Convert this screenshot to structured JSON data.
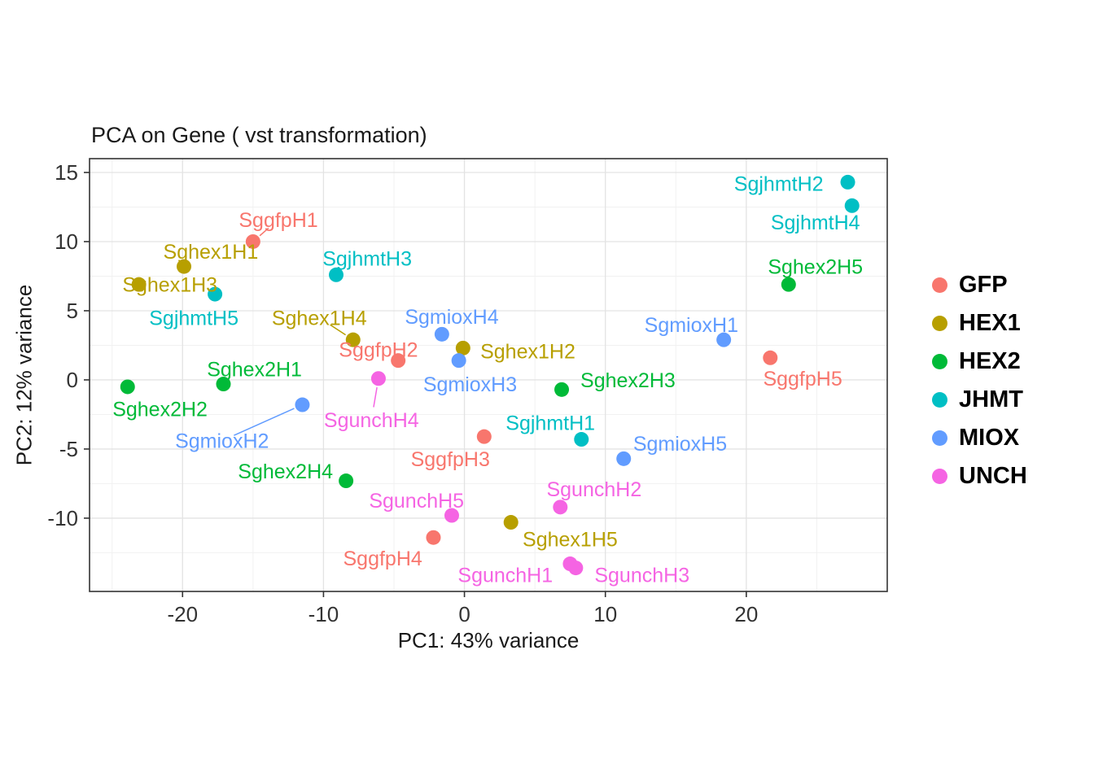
{
  "chart_data": {
    "type": "scatter",
    "title": "PCA on Gene ( vst transformation)",
    "xlabel": "PC1: 43% variance",
    "ylabel": "PC2: 12% variance",
    "xlim": [
      -26.6,
      30
    ],
    "ylim": [
      -15.3,
      16
    ],
    "x_ticks": [
      -20,
      -10,
      0,
      10,
      20
    ],
    "y_ticks": [
      -10,
      -5,
      0,
      5,
      10,
      15
    ],
    "x_minor_ticks": [
      -25,
      -15,
      -5,
      5,
      15,
      25
    ],
    "y_minor_ticks": [
      -12.5,
      -7.5,
      -2.5,
      2.5,
      7.5,
      12.5
    ],
    "grid": true,
    "legend_position": "right",
    "panel_background": "#ffffff",
    "gridline_color": "#e3e3e3",
    "groups": [
      {
        "name": "GFP",
        "color": "#F8766D"
      },
      {
        "name": "HEX1",
        "color": "#B79F00"
      },
      {
        "name": "HEX2",
        "color": "#00BA38"
      },
      {
        "name": "JHMT",
        "color": "#00BFC4"
      },
      {
        "name": "MIOX",
        "color": "#619CFF"
      },
      {
        "name": "UNCH",
        "color": "#F564E3"
      }
    ],
    "points": [
      {
        "label": "SggfpH1",
        "group": "GFP",
        "x": -15.0,
        "y": 10.0,
        "lx": -13.2,
        "ly": 11.6,
        "seg": true
      },
      {
        "label": "SggfpH2",
        "group": "GFP",
        "x": -4.7,
        "y": 1.4,
        "lx": -6.1,
        "ly": 2.2
      },
      {
        "label": "SggfpH3",
        "group": "GFP",
        "x": 1.4,
        "y": -4.1,
        "lx": -1.0,
        "ly": -5.7
      },
      {
        "label": "SggfpH4",
        "group": "GFP",
        "x": -2.2,
        "y": -11.4,
        "lx": -5.8,
        "ly": -12.9
      },
      {
        "label": "SggfpH5",
        "group": "GFP",
        "x": 21.7,
        "y": 1.6,
        "lx": 24.0,
        "ly": 0.1
      },
      {
        "label": "Sghex1H1",
        "group": "HEX1",
        "x": -19.9,
        "y": 8.2,
        "lx": -18.0,
        "ly": 9.3
      },
      {
        "label": "Sghex1H2",
        "group": "HEX1",
        "x": -0.1,
        "y": 2.3,
        "lx": 4.5,
        "ly": 2.1
      },
      {
        "label": "Sghex1H3",
        "group": "HEX1",
        "x": -23.1,
        "y": 6.9,
        "lx": -20.9,
        "ly": 6.9
      },
      {
        "label": "Sghex1H4",
        "group": "HEX1",
        "x": -7.9,
        "y": 2.9,
        "lx": -10.3,
        "ly": 4.5,
        "seg": true
      },
      {
        "label": "Sghex1H5",
        "group": "HEX1",
        "x": 3.3,
        "y": -10.3,
        "lx": 7.5,
        "ly": -11.5
      },
      {
        "label": "Sghex2H1",
        "group": "HEX2",
        "x": -17.1,
        "y": -0.3,
        "lx": -14.9,
        "ly": 0.8
      },
      {
        "label": "Sghex2H2",
        "group": "HEX2",
        "x": -23.9,
        "y": -0.5,
        "lx": -21.6,
        "ly": -2.1
      },
      {
        "label": "Sghex2H3",
        "group": "HEX2",
        "x": 6.9,
        "y": -0.7,
        "lx": 11.6,
        "ly": 0.0
      },
      {
        "label": "Sghex2H4",
        "group": "HEX2",
        "x": -8.4,
        "y": -7.3,
        "lx": -12.7,
        "ly": -6.6
      },
      {
        "label": "Sghex2H5",
        "group": "HEX2",
        "x": 23.0,
        "y": 6.9,
        "lx": 24.9,
        "ly": 8.2
      },
      {
        "label": "SgjhmtH1",
        "group": "JHMT",
        "x": 8.3,
        "y": -4.3,
        "lx": 6.1,
        "ly": -3.1
      },
      {
        "label": "SgjhmtH2",
        "group": "JHMT",
        "x": 27.2,
        "y": 14.3,
        "lx": 22.3,
        "ly": 14.2
      },
      {
        "label": "SgjhmtH3",
        "group": "JHMT",
        "x": -9.1,
        "y": 7.6,
        "lx": -6.9,
        "ly": 8.8
      },
      {
        "label": "SgjhmtH4",
        "group": "JHMT",
        "x": 27.5,
        "y": 12.6,
        "lx": 24.9,
        "ly": 11.4
      },
      {
        "label": "SgjhmtH5",
        "group": "JHMT",
        "x": -17.7,
        "y": 6.2,
        "lx": -19.2,
        "ly": 4.5
      },
      {
        "label": "SgmioxH1",
        "group": "MIOX",
        "x": 18.4,
        "y": 2.9,
        "lx": 16.1,
        "ly": 4.0
      },
      {
        "label": "SgmioxH2",
        "group": "MIOX",
        "x": -11.5,
        "y": -1.8,
        "lx": -17.2,
        "ly": -4.4,
        "seg": true
      },
      {
        "label": "SgmioxH3",
        "group": "MIOX",
        "x": -0.4,
        "y": 1.4,
        "lx": 0.4,
        "ly": -0.3
      },
      {
        "label": "SgmioxH4",
        "group": "MIOX",
        "x": -1.6,
        "y": 3.3,
        "lx": -0.9,
        "ly": 4.6
      },
      {
        "label": "SgmioxH5",
        "group": "MIOX",
        "x": 11.3,
        "y": -5.7,
        "lx": 15.3,
        "ly": -4.6
      },
      {
        "label": "SgunchH1",
        "group": "UNCH",
        "x": 7.5,
        "y": -13.3,
        "lx": 2.9,
        "ly": -14.1
      },
      {
        "label": "SgunchH2",
        "group": "UNCH",
        "x": 6.8,
        "y": -9.2,
        "lx": 9.2,
        "ly": -7.9
      },
      {
        "label": "SgunchH3",
        "group": "UNCH",
        "x": 7.9,
        "y": -13.6,
        "lx": 12.6,
        "ly": -14.1
      },
      {
        "label": "SgunchH4",
        "group": "UNCH",
        "x": -6.1,
        "y": 0.1,
        "lx": -6.6,
        "ly": -2.9,
        "seg": true
      },
      {
        "label": "SgunchH5",
        "group": "UNCH",
        "x": -0.9,
        "y": -9.8,
        "lx": -3.4,
        "ly": -8.7
      }
    ]
  }
}
